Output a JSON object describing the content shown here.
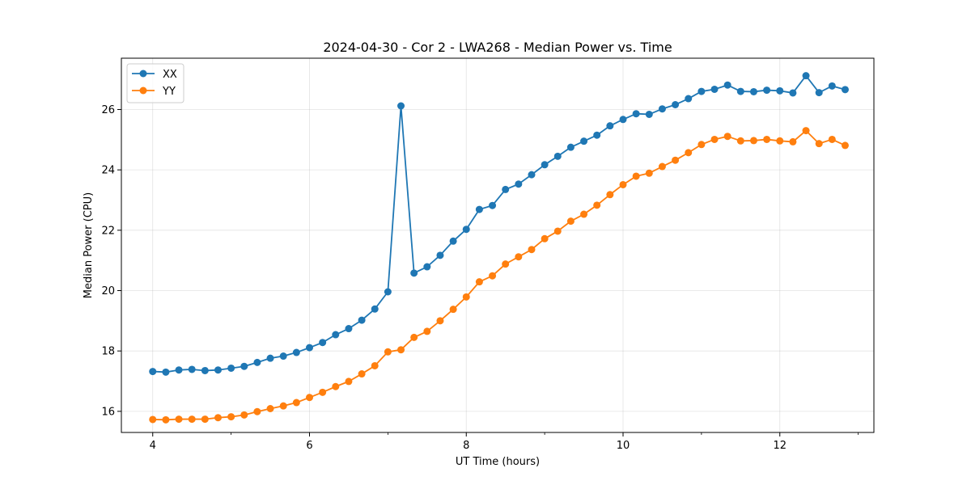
{
  "chart_data": {
    "type": "line",
    "title": "2024-04-30 - Cor 2 - LWA268 - Median Power vs. Time",
    "xlabel": "UT Time (hours)",
    "ylabel": "Median Power (CPU)",
    "xlim": [
      3.6,
      13.2
    ],
    "ylim": [
      15.3,
      27.7
    ],
    "xticks": [
      4,
      6,
      8,
      10,
      12
    ],
    "yticks": [
      16,
      18,
      20,
      22,
      24,
      26
    ],
    "xtick_labels": [
      "4",
      "6",
      "8",
      "10",
      "12"
    ],
    "ytick_labels": [
      "16",
      "18",
      "20",
      "22",
      "24",
      "26"
    ],
    "grid": true,
    "legend": "upper-left",
    "series": [
      {
        "name": "XX",
        "color": "#1f77b4",
        "x": [
          4.0,
          4.1667,
          4.3333,
          4.5,
          4.6667,
          4.8333,
          5.0,
          5.1667,
          5.3333,
          5.5,
          5.6667,
          5.8333,
          6.0,
          6.1667,
          6.3333,
          6.5,
          6.6667,
          6.8333,
          7.0,
          7.1667,
          7.3333,
          7.5,
          7.6667,
          7.8333,
          8.0,
          8.1667,
          8.3333,
          8.5,
          8.6667,
          8.8333,
          9.0,
          9.1667,
          9.3333,
          9.5,
          9.6667,
          9.8333,
          10.0,
          10.1667,
          10.3333,
          10.5,
          10.6667,
          10.8333,
          11.0,
          11.1667,
          11.3333,
          11.5,
          11.6667,
          11.8333,
          12.0,
          12.1667,
          12.3333,
          12.5,
          12.6667,
          12.8333
        ],
        "values": [
          17.32,
          17.3,
          17.37,
          17.39,
          17.35,
          17.37,
          17.43,
          17.49,
          17.62,
          17.76,
          17.83,
          17.95,
          18.11,
          18.28,
          18.54,
          18.74,
          19.02,
          19.39,
          19.96,
          26.12,
          20.58,
          20.79,
          21.17,
          21.64,
          22.03,
          22.69,
          22.82,
          23.35,
          23.53,
          23.84,
          24.17,
          24.45,
          24.75,
          24.95,
          25.15,
          25.46,
          25.67,
          25.86,
          25.84,
          26.02,
          26.16,
          26.36,
          26.6,
          26.67,
          26.81,
          26.6,
          26.59,
          26.64,
          26.62,
          26.55,
          27.12,
          26.56,
          26.78,
          26.66
        ]
      },
      {
        "name": "YY",
        "color": "#ff7f0e",
        "x": [
          4.0,
          4.1667,
          4.3333,
          4.5,
          4.6667,
          4.8333,
          5.0,
          5.1667,
          5.3333,
          5.5,
          5.6667,
          5.8333,
          6.0,
          6.1667,
          6.3333,
          6.5,
          6.6667,
          6.8333,
          7.0,
          7.1667,
          7.3333,
          7.5,
          7.6667,
          7.8333,
          8.0,
          8.1667,
          8.3333,
          8.5,
          8.6667,
          8.8333,
          9.0,
          9.1667,
          9.3333,
          9.5,
          9.6667,
          9.8333,
          10.0,
          10.1667,
          10.3333,
          10.5,
          10.6667,
          10.8333,
          11.0,
          11.1667,
          11.3333,
          11.5,
          11.6667,
          11.8333,
          12.0,
          12.1667,
          12.3333,
          12.5,
          12.6667,
          12.8333
        ],
        "values": [
          15.73,
          15.72,
          15.74,
          15.74,
          15.74,
          15.79,
          15.82,
          15.88,
          15.99,
          16.09,
          16.18,
          16.29,
          16.46,
          16.63,
          16.82,
          16.99,
          17.24,
          17.51,
          17.97,
          18.04,
          18.45,
          18.65,
          19.0,
          19.38,
          19.79,
          20.29,
          20.49,
          20.88,
          21.12,
          21.36,
          21.72,
          21.97,
          22.3,
          22.53,
          22.83,
          23.18,
          23.51,
          23.79,
          23.89,
          24.11,
          24.32,
          24.57,
          24.84,
          25.01,
          25.11,
          24.96,
          24.97,
          25.01,
          24.96,
          24.93,
          25.3,
          24.87,
          25.01,
          24.81
        ]
      }
    ]
  }
}
